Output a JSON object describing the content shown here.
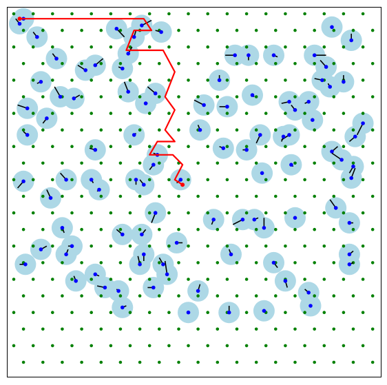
{
  "chart_data": {
    "type": "scatter",
    "title": "",
    "xlabel": "",
    "ylabel": "",
    "axes_visible": false,
    "grid": false,
    "colors": {
      "grid_points": "#008000",
      "obstacle_circles": "#add8e6",
      "obstacle_centers": "#0000ff",
      "obstacle_links": "#000000",
      "path": "#ff0000",
      "frame": "#000000"
    },
    "grid_points": {
      "x_columns": [
        0,
        1,
        2,
        3,
        4,
        5,
        6,
        7,
        8,
        9,
        10,
        11,
        12,
        13,
        14,
        15,
        16,
        17,
        18
      ],
      "row_offset_x_odd": 0.5,
      "row_count": 22,
      "xlim": [
        0,
        18.6
      ],
      "ylim": [
        0,
        21.5
      ]
    },
    "obstacles": [
      [
        0.3,
        0.6,
        0.1,
        0.3
      ],
      [
        1.2,
        1.4,
        1.0,
        1.1
      ],
      [
        2.2,
        2.7,
        2.0,
        2.4
      ],
      [
        3.7,
        3.4,
        3.3,
        3.1
      ],
      [
        5.3,
        0.9,
        5.7,
        1.4
      ],
      [
        6.2,
        1.4,
        6.3,
        1.0
      ],
      [
        6.6,
        0.7,
        7.1,
        0.4
      ],
      [
        7.6,
        1.1,
        7.3,
        1.0
      ],
      [
        5.9,
        2.4,
        6.1,
        2.0
      ],
      [
        5.6,
        3.3,
        5.4,
        3.2
      ],
      [
        11.4,
        2.5,
        10.9,
        2.5
      ],
      [
        12.1,
        2.5,
        12.1,
        2.8
      ],
      [
        13.4,
        2.5,
        13.6,
        2.6
      ],
      [
        15.5,
        2.5,
        16.1,
        2.5
      ],
      [
        16.1,
        3.2,
        15.8,
        2.8
      ],
      [
        17.4,
        1.6,
        17.4,
        1.2
      ],
      [
        4.2,
        3.1,
        4.6,
        2.7
      ],
      [
        1.4,
        4.1,
        1.2,
        4.2
      ],
      [
        2.4,
        5.0,
        2.1,
        4.4
      ],
      [
        3.1,
        5.1,
        3.4,
        4.9
      ],
      [
        5.9,
        4.7,
        5.7,
        4.1
      ],
      [
        7.3,
        4.8,
        6.9,
        4.4
      ],
      [
        6.8,
        5.4,
        6.9,
        5.4
      ],
      [
        10.6,
        4.0,
        10.6,
        3.7
      ],
      [
        12.3,
        4.9,
        12.4,
        5.0
      ],
      [
        15.9,
        4.0,
        15.5,
        3.9
      ],
      [
        16.3,
        4.4,
        16.2,
        4.2
      ],
      [
        17.0,
        4.1,
        17.0,
        3.7
      ],
      [
        0.7,
        5.7,
        0.2,
        5.5
      ],
      [
        1.7,
        6.3,
        1.5,
        6.6
      ],
      [
        9.8,
        5.5,
        9.3,
        5.2
      ],
      [
        11.0,
        5.6,
        10.6,
        5.6
      ],
      [
        14.2,
        5.3,
        13.8,
        5.4
      ],
      [
        14.5,
        5.8,
        14.3,
        5.5
      ],
      [
        15.2,
        5.3,
        15.0,
        5.4
      ],
      [
        15.4,
        6.4,
        15.4,
        6.3
      ],
      [
        0.7,
        7.3,
        0.5,
        7.1
      ],
      [
        6.2,
        7.3,
        6.3,
        7.2
      ],
      [
        9.6,
        7.0,
        9.5,
        6.7
      ],
      [
        12.7,
        7.3,
        12.5,
        7.8
      ],
      [
        14.2,
        7.3,
        13.8,
        7.6
      ],
      [
        13.9,
        7.4,
        13.8,
        7.7
      ],
      [
        17.6,
        7.4,
        17.3,
        7.7
      ],
      [
        18.0,
        6.6,
        17.7,
        7.3
      ],
      [
        4.2,
        8.2,
        3.9,
        8.1
      ],
      [
        7.4,
        8.5,
        7.2,
        8.4
      ],
      [
        10.8,
        8.1,
        10.6,
        8.0
      ],
      [
        12.0,
        8.2,
        11.8,
        8.2
      ],
      [
        7.2,
        9.1,
        7.0,
        9.4
      ],
      [
        16.4,
        8.3,
        16.7,
        8.0
      ],
      [
        16.9,
        8.8,
        16.4,
        8.4
      ],
      [
        17.5,
        9.2,
        17.3,
        9.6
      ],
      [
        17.4,
        9.9,
        17.6,
        9.3
      ],
      [
        14.3,
        9.1,
        14.4,
        9.2
      ],
      [
        12.8,
        9.6,
        12.8,
        9.6
      ],
      [
        2.7,
        10.0,
        2.4,
        9.6
      ],
      [
        4.0,
        10.0,
        4.1,
        10.2
      ],
      [
        6.3,
        10.0,
        6.3,
        10.3
      ],
      [
        6.7,
        10.3,
        6.5,
        10.0
      ],
      [
        8.6,
        10.0,
        8.4,
        10.2
      ],
      [
        4.4,
        10.6,
        4.3,
        10.7
      ],
      [
        0.5,
        10.1,
        0.2,
        10.5
      ],
      [
        1.9,
        11.1,
        1.7,
        10.6
      ],
      [
        7.3,
        12.0,
        7.1,
        12.6
      ],
      [
        10.3,
        12.4,
        10.2,
        12.7
      ],
      [
        11.8,
        12.4,
        11.3,
        12.7
      ],
      [
        12.4,
        12.4,
        12.6,
        12.3
      ],
      [
        12.9,
        12.9,
        12.9,
        12.3
      ],
      [
        14.5,
        12.3,
        14.5,
        12.2
      ],
      [
        16.6,
        11.7,
        16.3,
        11.2
      ],
      [
        17.3,
        12.6,
        17.5,
        12.6
      ],
      [
        2.5,
        12.9,
        2.6,
        13.2
      ],
      [
        5.6,
        13.3,
        5.3,
        13.0
      ],
      [
        6.6,
        13.3,
        6.8,
        13.0
      ],
      [
        8.4,
        13.8,
        8.7,
        13.8
      ],
      [
        1.4,
        14.2,
        1.7,
        14.0
      ],
      [
        3.0,
        14.0,
        2.8,
        14.0
      ],
      [
        2.7,
        14.5,
        2.8,
        14.2
      ],
      [
        11.2,
        14.5,
        11.1,
        14.2
      ],
      [
        17.3,
        14.5,
        17.5,
        14.3
      ],
      [
        6.7,
        14.5,
        6.7,
        14.9
      ],
      [
        6.5,
        15.1,
        6.4,
        14.6
      ],
      [
        7.7,
        15.1,
        7.5,
        14.7
      ],
      [
        7.9,
        15.7,
        7.8,
        14.9
      ],
      [
        0.6,
        15.1,
        0.3,
        15.1
      ],
      [
        13.4,
        15.0,
        13.6,
        15.3
      ],
      [
        17.3,
        15.1,
        17.5,
        15.0
      ],
      [
        3.2,
        16.1,
        3.1,
        15.8
      ],
      [
        4.2,
        15.7,
        4.4,
        15.8
      ],
      [
        14.0,
        16.1,
        14.1,
        16.5
      ],
      [
        4.7,
        16.5,
        4.3,
        16.4
      ],
      [
        5.4,
        16.7,
        5.3,
        16.6
      ],
      [
        7.2,
        16.5,
        6.9,
        16.5
      ],
      [
        9.5,
        16.7,
        9.6,
        16.3
      ],
      [
        15.2,
        16.8,
        15.0,
        16.6
      ],
      [
        5.6,
        17.7,
        5.8,
        17.6
      ],
      [
        9.0,
        18.0,
        9.0,
        17.9
      ],
      [
        11.1,
        18.0,
        11.1,
        17.6
      ],
      [
        12.9,
        17.9,
        13.0,
        17.9
      ],
      [
        15.3,
        17.6,
        15.3,
        17.6
      ],
      [
        0.5,
        0.3,
        0.3,
        0.3
      ],
      [
        16.4,
        0.8,
        16.4,
        0.8
      ]
    ],
    "obstacle_radius": 0.55,
    "path": [
      [
        0.3,
        0.3
      ],
      [
        6.7,
        0.3
      ],
      [
        7.1,
        1.0
      ],
      [
        6.2,
        1.0
      ],
      [
        5.8,
        2.2
      ],
      [
        7.7,
        2.2
      ],
      [
        8.3,
        3.5
      ],
      [
        7.8,
        5.0
      ],
      [
        8.3,
        5.8
      ],
      [
        7.8,
        7.0
      ],
      [
        8.3,
        7.7
      ],
      [
        7.4,
        7.7
      ],
      [
        7.0,
        8.5
      ],
      [
        8.2,
        8.5
      ],
      [
        8.7,
        9.1
      ],
      [
        8.3,
        10.0
      ],
      [
        8.7,
        10.3
      ]
    ]
  }
}
